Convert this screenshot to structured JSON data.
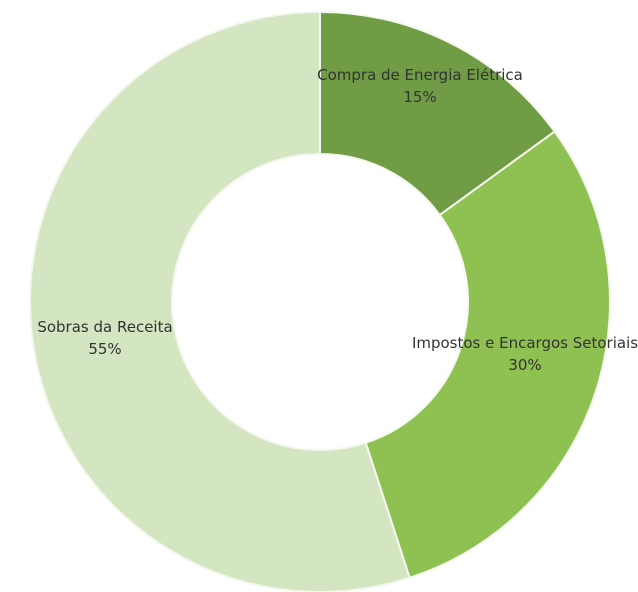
{
  "chart_data": {
    "type": "pie",
    "categories": [
      "Compra de Energia Elétrica",
      "Impostos e Encargos Setoriais",
      "Sobras da Receita"
    ],
    "values": [
      15,
      30,
      55
    ],
    "value_labels": [
      "15%",
      "30%",
      "55%"
    ],
    "colors": [
      "#6f9c45",
      "#8fc052",
      "#d4e5c1"
    ]
  }
}
